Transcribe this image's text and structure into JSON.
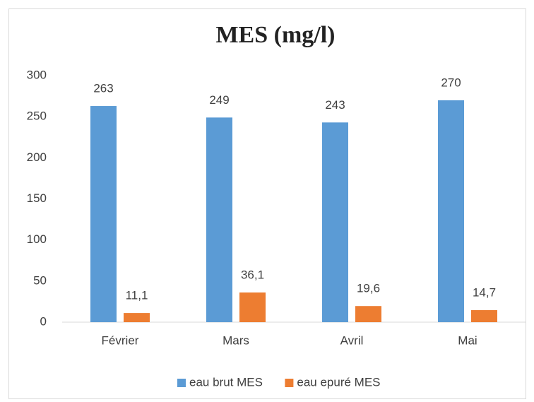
{
  "chart_data": {
    "type": "bar",
    "title": "MES (mg/l)",
    "categories": [
      "Février",
      "Mars",
      "Avril",
      "Mai"
    ],
    "series": [
      {
        "name": "eau brut MES",
        "color": "#5b9bd5",
        "values": [
          263,
          249,
          243,
          270
        ]
      },
      {
        "name": "eau epuré MES",
        "color": "#ed7d31",
        "values": [
          11.1,
          36.1,
          19.6,
          14.7
        ],
        "value_labels": [
          "11,1",
          "36,1",
          "19,6",
          "14,7"
        ]
      }
    ],
    "ylim": [
      0,
      300
    ],
    "yticks": [
      0,
      50,
      100,
      150,
      200,
      250,
      300
    ],
    "grid": false,
    "legend": "bottom"
  }
}
